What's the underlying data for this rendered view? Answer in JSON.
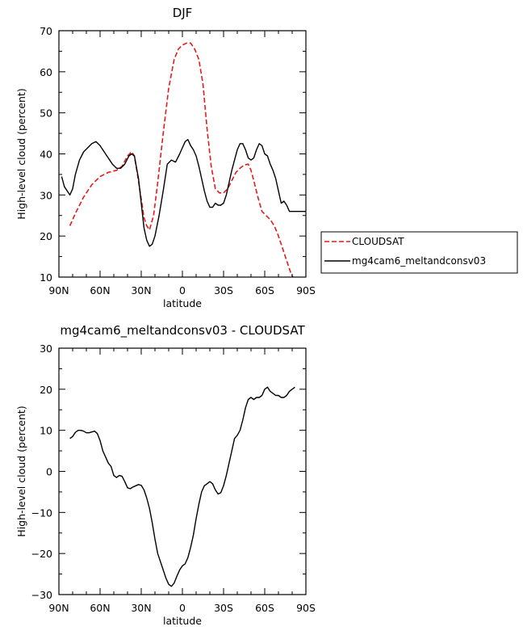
{
  "chart_data": [
    {
      "type": "line",
      "title": "DJF",
      "xlabel": "latitude",
      "ylabel": "High-level cloud (percent)",
      "xlim": [
        -90,
        90
      ],
      "ylim": [
        10,
        70
      ],
      "x_ticks": [
        -90,
        -60,
        -30,
        0,
        30,
        60,
        90
      ],
      "x_tick_labels": [
        "90N",
        "60N",
        "30N",
        "0",
        "30S",
        "60S",
        "90S"
      ],
      "y_ticks": [
        10,
        20,
        30,
        40,
        50,
        60,
        70
      ],
      "y_tick_labels": [
        "10",
        "20",
        "30",
        "40",
        "50",
        "60",
        "70"
      ],
      "grid": false,
      "legend": "outside-right",
      "series": [
        {
          "name": "CLOUDSAT",
          "color": "#e41a1c",
          "dash": "dashed",
          "x": [
            -82,
            -78,
            -72,
            -66,
            -60,
            -54,
            -48,
            -44,
            -40,
            -37,
            -35,
            -33,
            -30,
            -28,
            -26,
            -24,
            -21,
            -18,
            -14,
            -10,
            -6,
            -3,
            0,
            3,
            6,
            9,
            12,
            15,
            18,
            21,
            24,
            27,
            30,
            33,
            36,
            39,
            42,
            45,
            48,
            50,
            52,
            55,
            58,
            61,
            64,
            67,
            70,
            73,
            76,
            79,
            82
          ],
          "y": [
            22.5,
            25.5,
            29.5,
            32.5,
            34.5,
            35.5,
            36,
            37,
            39.5,
            40.5,
            39.5,
            35.5,
            29,
            24.5,
            22.5,
            21.5,
            25,
            33,
            45,
            56,
            63,
            65.5,
            66.5,
            67,
            67,
            65.5,
            63,
            57,
            46,
            37,
            31.5,
            30.5,
            30.5,
            31.5,
            33.5,
            35.5,
            36.5,
            37.3,
            37.5,
            36,
            33.5,
            29.5,
            26,
            25,
            24,
            22.5,
            20,
            17,
            14,
            11,
            9
          ]
        },
        {
          "name": "mg4cam6_meltandconsv03",
          "color": "#000000",
          "dash": "solid",
          "x": [
            -88,
            -86,
            -82,
            -80,
            -78,
            -75,
            -72,
            -69,
            -66,
            -63,
            -60,
            -57,
            -54,
            -51,
            -48,
            -45,
            -42,
            -39,
            -37,
            -35,
            -32,
            -30,
            -28,
            -26,
            -24,
            -22,
            -20,
            -17,
            -14,
            -11,
            -8,
            -5,
            -2,
            0,
            2,
            4,
            6,
            8,
            10,
            12,
            14,
            16,
            18,
            20,
            22,
            24,
            26,
            28,
            30,
            32,
            34,
            36,
            38,
            40,
            42,
            44,
            46,
            48,
            50,
            52,
            54,
            56,
            58,
            60,
            62,
            64,
            66,
            68,
            70,
            72,
            74,
            76,
            78,
            80,
            82,
            84,
            86,
            88,
            90
          ],
          "y": [
            34.5,
            32,
            30,
            31.5,
            35,
            38.5,
            40.5,
            41.5,
            42.5,
            43,
            42,
            40.5,
            39,
            37.5,
            36.5,
            36.5,
            37.5,
            39.5,
            40,
            39.5,
            34,
            28,
            22,
            19,
            17.5,
            18,
            20,
            25,
            31,
            37.5,
            38.5,
            38,
            40,
            41.5,
            43,
            43.5,
            42,
            41,
            39.5,
            37,
            34,
            31,
            28.5,
            27,
            27,
            28,
            27.5,
            27.5,
            28,
            30,
            33,
            36,
            38.5,
            41,
            42.5,
            42.5,
            41,
            39,
            38.5,
            39,
            41,
            42.5,
            42,
            40,
            39.5,
            37.5,
            36,
            34,
            31,
            28,
            28.5,
            27.5,
            26,
            26,
            26,
            26,
            26,
            26,
            26
          ]
        }
      ]
    },
    {
      "type": "line",
      "title": "mg4cam6_meltandconsv03 - CLOUDSAT",
      "xlabel": "latitude",
      "ylabel": "High-level cloud (percent)",
      "xlim": [
        -90,
        90
      ],
      "ylim": [
        -30,
        30
      ],
      "x_ticks": [
        -90,
        -60,
        -30,
        0,
        30,
        60,
        90
      ],
      "x_tick_labels": [
        "90N",
        "60N",
        "30N",
        "0",
        "30S",
        "60S",
        "90S"
      ],
      "y_ticks": [
        -30,
        -20,
        -10,
        0,
        10,
        20,
        30
      ],
      "y_tick_labels": [
        "−30",
        "−20",
        "−10",
        "0",
        "10",
        "20",
        "30"
      ],
      "grid": false,
      "series": [
        {
          "color": "#000000",
          "dash": "solid",
          "x": [
            -82,
            -80,
            -78,
            -76,
            -74,
            -72,
            -70,
            -68,
            -66,
            -64,
            -62,
            -60,
            -58,
            -56,
            -54,
            -52,
            -50,
            -48,
            -46,
            -44,
            -42,
            -40,
            -38,
            -36,
            -34,
            -32,
            -30,
            -28,
            -26,
            -24,
            -22,
            -20,
            -18,
            -16,
            -14,
            -12,
            -10,
            -8,
            -6,
            -4,
            -2,
            0,
            2,
            4,
            6,
            8,
            10,
            12,
            14,
            16,
            18,
            20,
            22,
            24,
            26,
            28,
            30,
            32,
            34,
            36,
            38,
            40,
            42,
            44,
            46,
            48,
            50,
            52,
            54,
            56,
            58,
            60,
            62,
            64,
            66,
            68,
            70,
            72,
            74,
            76,
            78,
            80,
            82
          ],
          "y": [
            8,
            8.5,
            9.5,
            10,
            10,
            9.8,
            9.4,
            9.4,
            9.6,
            9.8,
            9.2,
            7.5,
            5,
            3.5,
            2,
            1.2,
            -1,
            -1.5,
            -1,
            -1.2,
            -2.5,
            -4,
            -4.2,
            -3.8,
            -3.5,
            -3.2,
            -3.4,
            -4.5,
            -6.5,
            -9,
            -12.5,
            -16.5,
            -20,
            -22,
            -24,
            -26,
            -27.5,
            -28,
            -27.2,
            -25.5,
            -24,
            -23,
            -22.5,
            -21,
            -18.5,
            -15.5,
            -11.5,
            -8,
            -5,
            -3.5,
            -3,
            -2.5,
            -3,
            -4.5,
            -5.5,
            -5.2,
            -3.5,
            -1,
            2,
            5,
            8,
            8.8,
            10,
            12.5,
            15.5,
            17.5,
            18,
            17.5,
            18,
            18,
            18.5,
            20,
            20.5,
            19.5,
            19,
            18.5,
            18.5,
            18,
            18,
            18.5,
            19.5,
            20,
            20.5
          ]
        }
      ]
    }
  ]
}
